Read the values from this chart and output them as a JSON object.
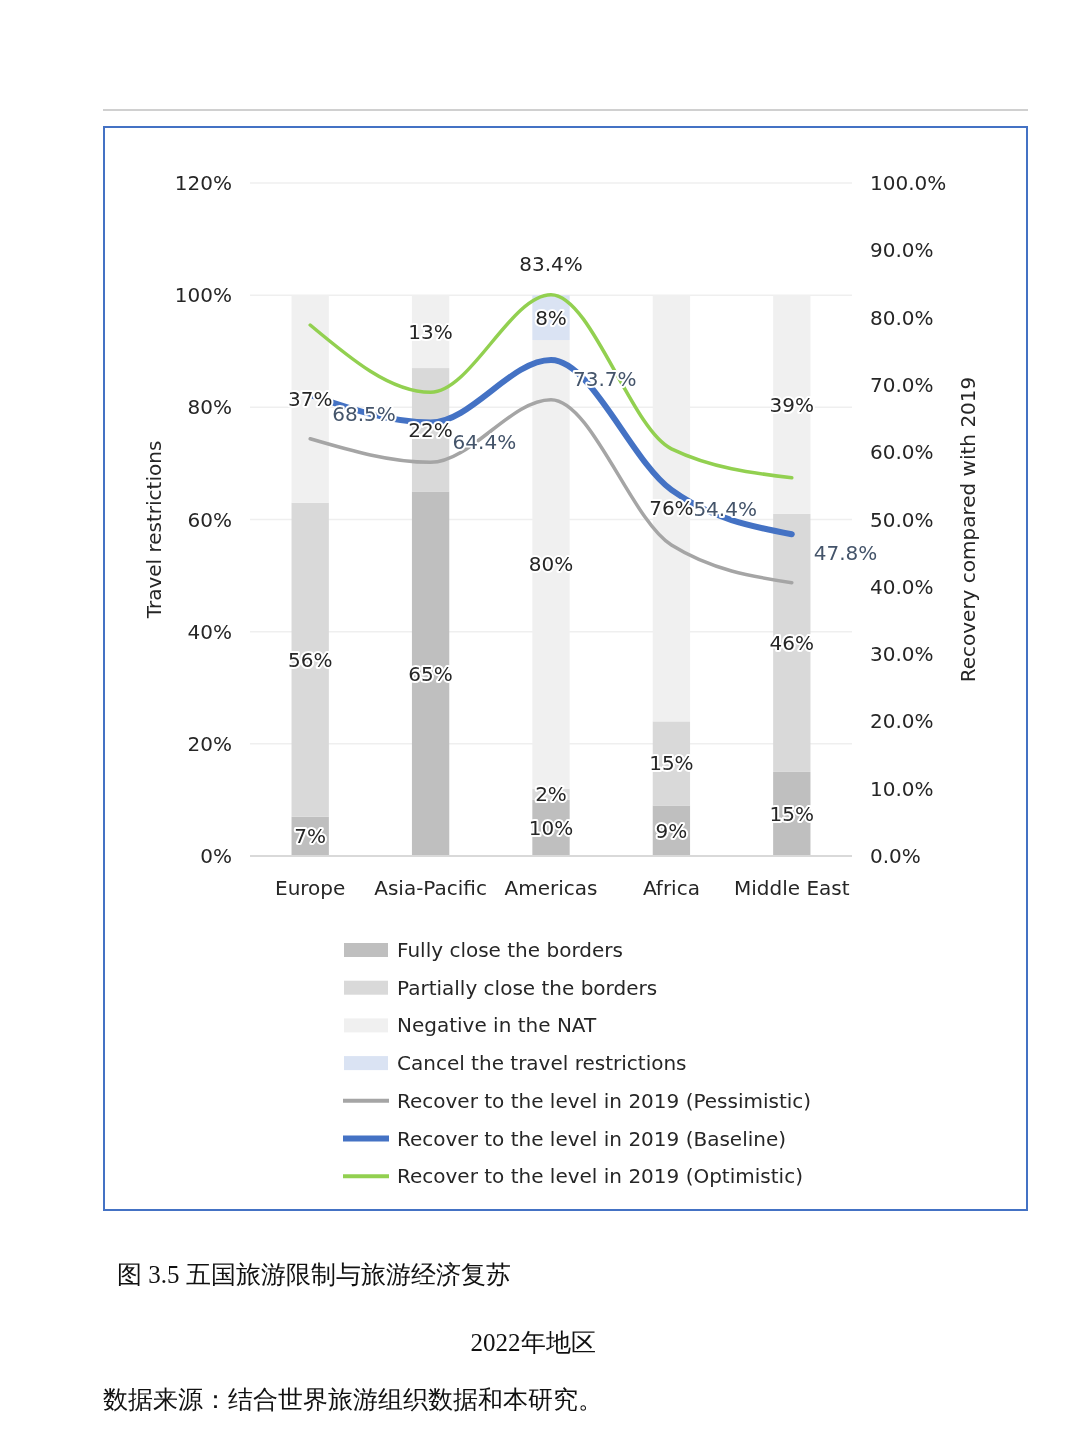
{
  "chart_data": {
    "type": "bar",
    "stacked": true,
    "categories": [
      "Europe",
      "Asia-Pacific",
      "Americas",
      "Africa",
      "Middle East"
    ],
    "ylabel": "Travel restrictions",
    "y2label": "Recovery compared with 2019",
    "ylim": [
      0,
      120
    ],
    "yticks": [
      {
        "value": 0,
        "label": "0%"
      },
      {
        "value": 20,
        "label": "20%"
      },
      {
        "value": 40,
        "label": "40%"
      },
      {
        "value": 60,
        "label": "60%"
      },
      {
        "value": 80,
        "label": "80%"
      },
      {
        "value": 100,
        "label": "100%"
      },
      {
        "value": 120,
        "label": "120%"
      }
    ],
    "y2lim": [
      0,
      100
    ],
    "y2ticks": [
      {
        "value": 0,
        "label": "0.0%"
      },
      {
        "value": 10,
        "label": "10.0%"
      },
      {
        "value": 20,
        "label": "20.0%"
      },
      {
        "value": 30,
        "label": "30.0%"
      },
      {
        "value": 40,
        "label": "40.0%"
      },
      {
        "value": 50,
        "label": "50.0%"
      },
      {
        "value": 60,
        "label": "60.0%"
      },
      {
        "value": 70,
        "label": "70.0%"
      },
      {
        "value": 80,
        "label": "80.0%"
      },
      {
        "value": 90,
        "label": "90.0%"
      },
      {
        "value": 100,
        "label": "100.0%"
      }
    ],
    "grid": "y",
    "legend": "bottom",
    "series": [
      {
        "name": "Fully close the borders",
        "color": "#bfbfbf",
        "values": [
          7,
          65,
          10,
          9,
          15
        ],
        "value_labels": [
          "7%",
          "65%",
          "10%",
          "9%",
          "15%"
        ]
      },
      {
        "name": "Partially close the borders",
        "color": "#d9d9d9",
        "values": [
          56,
          22,
          2,
          15,
          46
        ],
        "value_labels": [
          "56%",
          "22%",
          "2%",
          "15%",
          "46%"
        ]
      },
      {
        "name": "Negative in the NAT",
        "color": "#f0f0f0",
        "values": [
          37,
          13,
          80,
          76,
          39
        ],
        "value_labels": [
          "37%",
          "13%",
          "80%",
          "76%",
          "39%"
        ]
      },
      {
        "name": "Cancel the travel restrictions",
        "color": "#dae3f3",
        "values": [
          0,
          0,
          8,
          0,
          0
        ],
        "value_labels": [
          null,
          null,
          "8%",
          null,
          null
        ]
      },
      {
        "name": "Recover to the level in 2019 (Pessimistic)",
        "type": "line",
        "axis": "y2",
        "color": "#a5a5a5",
        "values": [
          62.0,
          58.5,
          67.8,
          46.2,
          40.6
        ]
      },
      {
        "name": "Recover to the level in 2019 (Baseline)",
        "type": "line",
        "axis": "y2",
        "color": "#4472c4",
        "values": [
          68.5,
          64.4,
          73.7,
          54.4,
          47.8
        ],
        "value_labels": [
          "68.5%",
          "64.4%",
          "73.7%",
          "54.4%",
          "47.8%"
        ]
      },
      {
        "name": "Recover to the level in 2019 (Optimistic)",
        "type": "line",
        "axis": "y2",
        "color": "#92d050",
        "values": [
          78.9,
          68.9,
          83.4,
          60.5,
          56.2
        ],
        "value_labels": [
          null,
          null,
          "83.4%",
          null,
          null
        ]
      }
    ],
    "annotations": [
      "图 3.5 五国旅游限制与旅游经济复苏",
      "2022年地区",
      "数据来源：结合世界旅游组织数据和本研究。"
    ]
  }
}
